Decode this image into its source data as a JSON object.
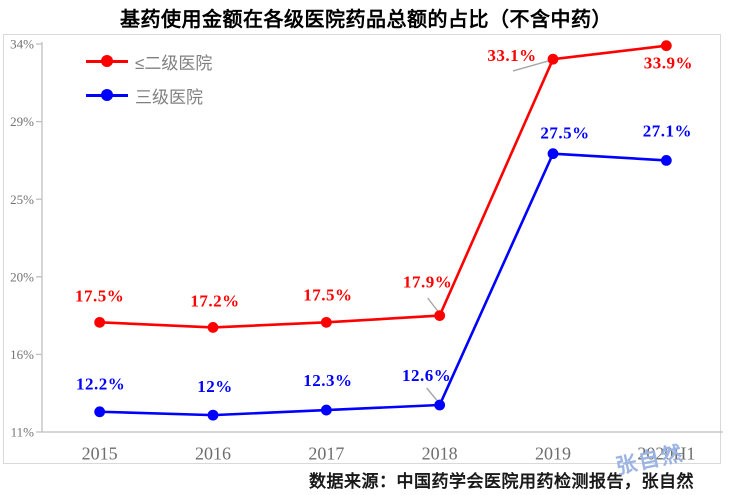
{
  "title": "基药使用金额在各级医院药品总额的占比（不含中药）",
  "source_note": "数据来源：中国药学会医院用药检测报告，张自然",
  "watermark": "张自然",
  "colors": {
    "series_below_level2": "#ff0000",
    "series_level3": "#0000ff",
    "axis_line": "#bfbfbf",
    "tick_text": "#737373",
    "x_label_text": "#6e6e6e",
    "leader_line": "#a6a6a6",
    "frame_border": "#d9d9d9",
    "watermark_text": "#9cb4e4",
    "title_text": "#000000"
  },
  "chart_data": {
    "type": "line",
    "title": "基药使用金额在各级医院药品总额的占比（不含中药）",
    "categories": [
      "2015",
      "2016",
      "2017",
      "2018",
      "2019",
      "2020H1"
    ],
    "series": [
      {
        "name": "≤二级医院",
        "color": "#ff0000",
        "values": [
          17.5,
          17.2,
          17.5,
          17.9,
          33.1,
          33.9
        ],
        "labels": [
          "17.5%",
          "17.2%",
          "17.5%",
          "17.9%",
          "33.1%",
          "33.9%"
        ]
      },
      {
        "name": "三级医院",
        "color": "#0000ff",
        "values": [
          12.2,
          12.0,
          12.3,
          12.6,
          27.5,
          27.1
        ],
        "labels": [
          "12.2%",
          "12%",
          "12.3%",
          "12.6%",
          "27.5%",
          "27.1%"
        ]
      }
    ],
    "y_axis": {
      "min": 11,
      "max": 34,
      "tick_labels_top_to_bottom": [
        "34%",
        "29%",
        "25%",
        "20%",
        "16%",
        "11%"
      ]
    },
    "x_axis": {
      "label_suffix": ""
    },
    "legend_position": "top-left",
    "grid": false,
    "markers": "circle"
  }
}
